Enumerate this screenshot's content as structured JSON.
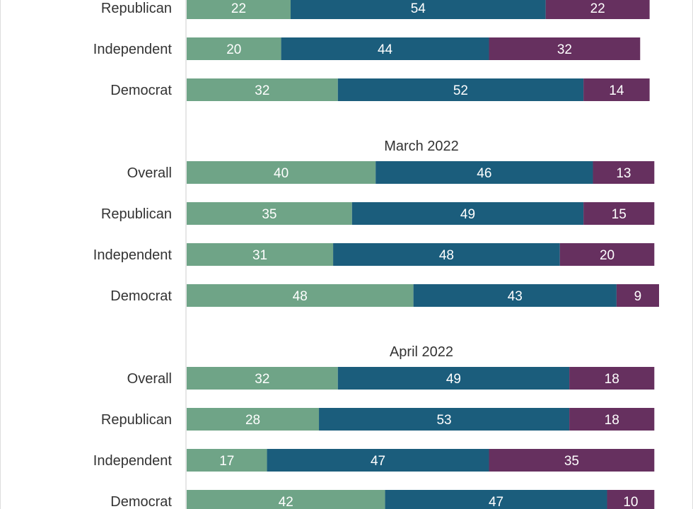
{
  "chart_data": {
    "type": "bar",
    "orientation": "horizontal",
    "stacked": true,
    "colors": [
      "#6fa487",
      "#1b5d7c",
      "#66305f"
    ],
    "groups": [
      {
        "title": "",
        "rows": [
          {
            "label": "Republican",
            "values": [
              22,
              54,
              22
            ]
          },
          {
            "label": "Independent",
            "values": [
              20,
              44,
              32
            ]
          },
          {
            "label": "Democrat",
            "values": [
              32,
              52,
              14
            ]
          }
        ]
      },
      {
        "title": "March 2022",
        "rows": [
          {
            "label": "Overall",
            "values": [
              40,
              46,
              13
            ]
          },
          {
            "label": "Republican",
            "values": [
              35,
              49,
              15
            ]
          },
          {
            "label": "Independent",
            "values": [
              31,
              48,
              20
            ]
          },
          {
            "label": "Democrat",
            "values": [
              48,
              43,
              9
            ]
          }
        ]
      },
      {
        "title": "April 2022",
        "rows": [
          {
            "label": "Overall",
            "values": [
              32,
              49,
              18
            ]
          },
          {
            "label": "Republican",
            "values": [
              28,
              53,
              18
            ]
          },
          {
            "label": "Independent",
            "values": [
              17,
              47,
              35
            ]
          },
          {
            "label": "Democrat",
            "values": [
              42,
              47,
              10
            ]
          }
        ]
      }
    ],
    "xlim": [
      0,
      100
    ],
    "grid": false,
    "legend": "none"
  }
}
